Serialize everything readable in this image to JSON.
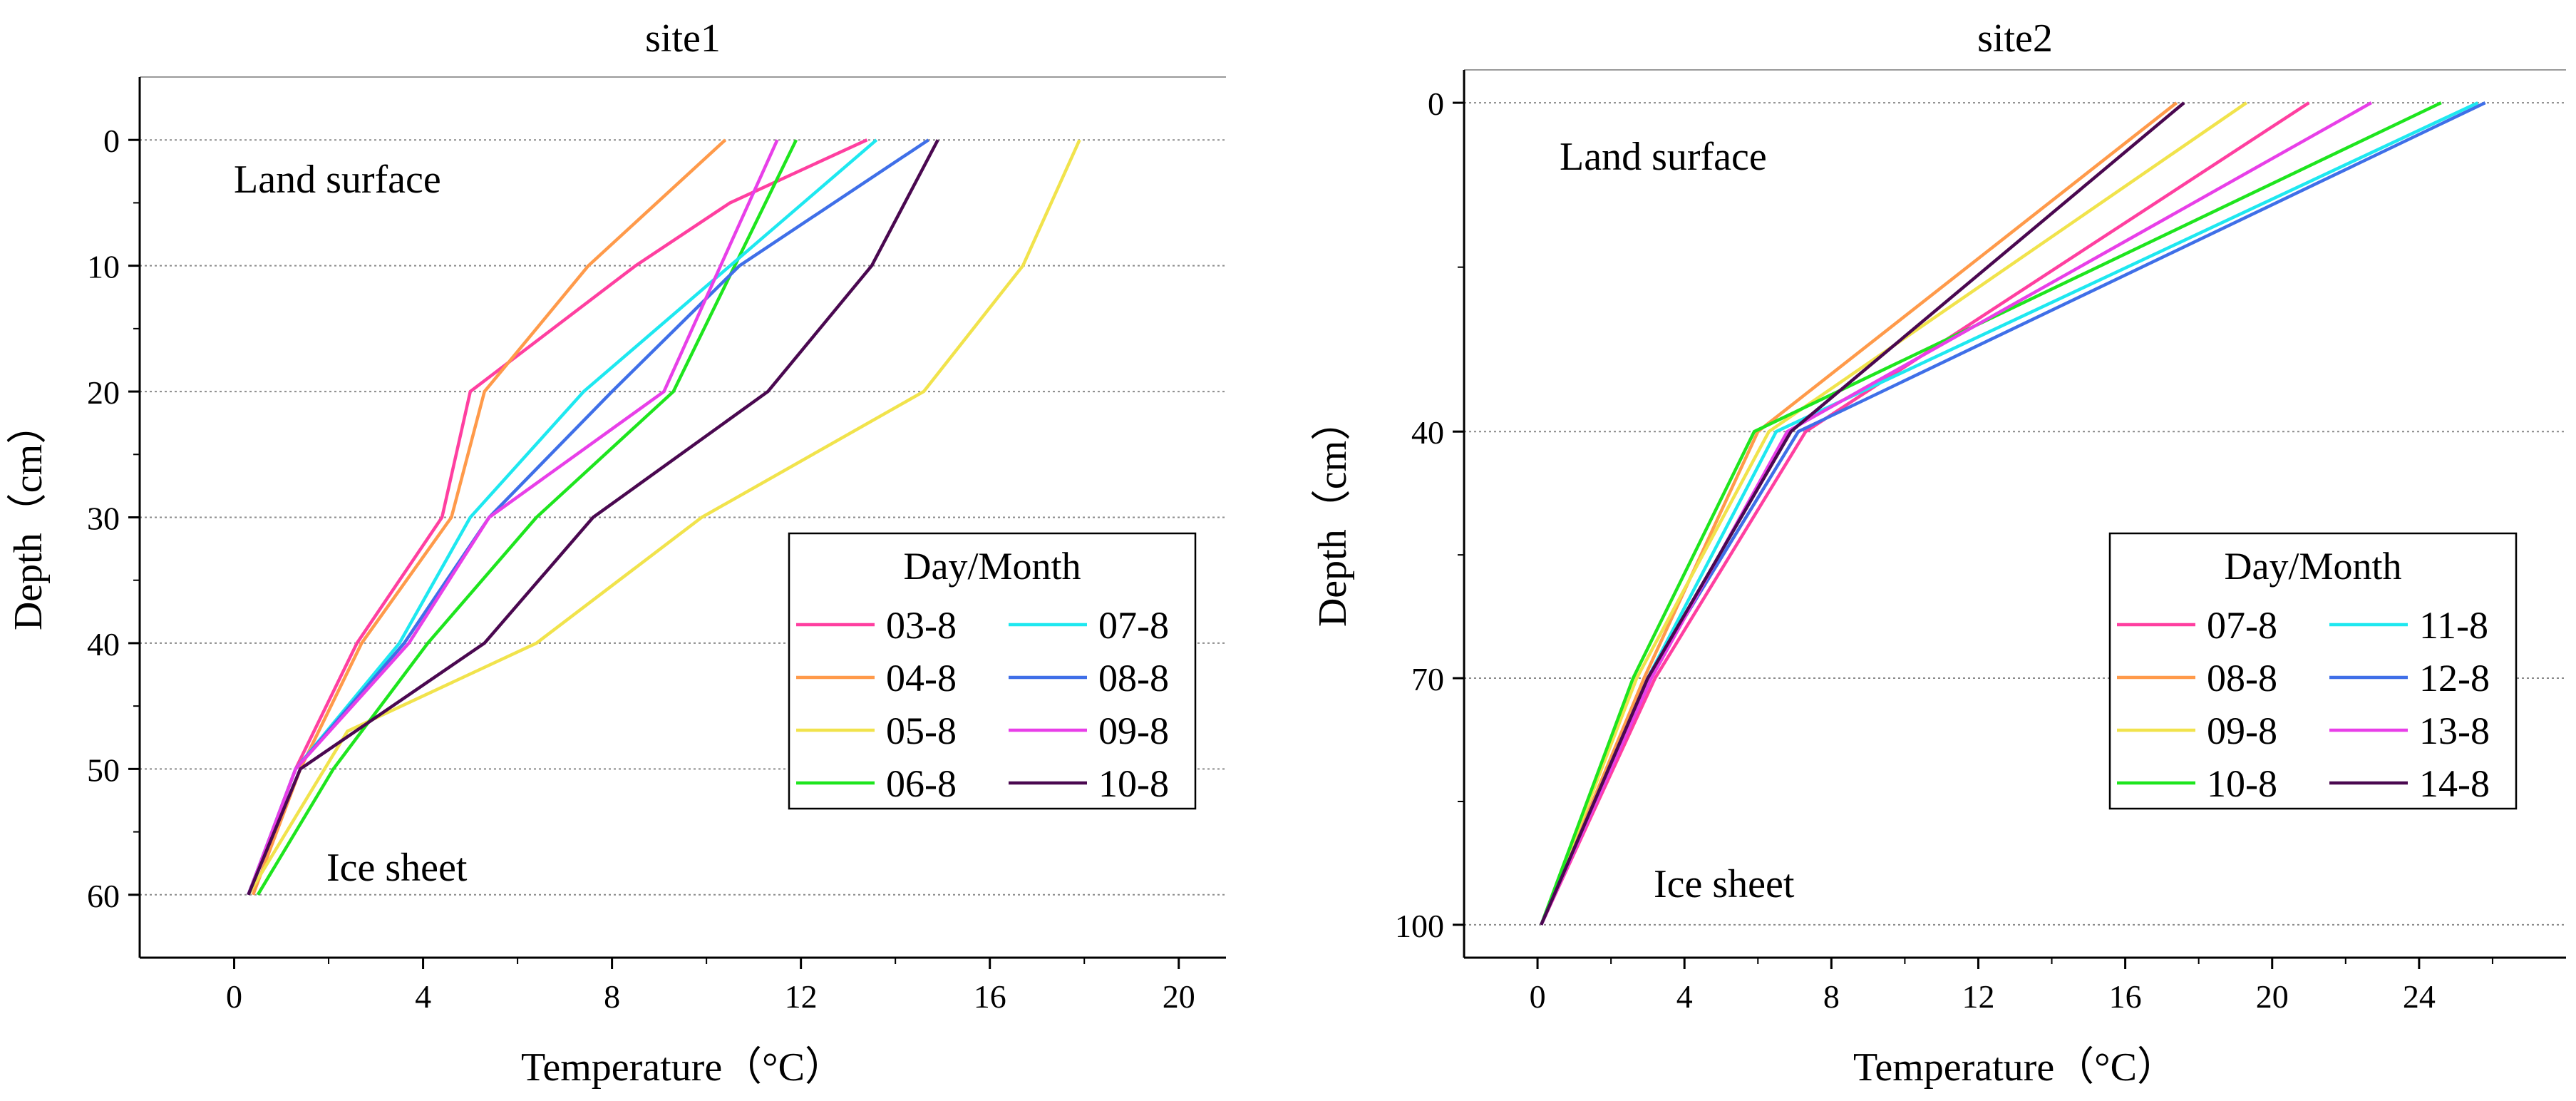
{
  "chart_data": [
    {
      "type": "line",
      "title": "site1",
      "xlabel": "Temperature（°C）",
      "ylabel": "Depth（cm）",
      "xlim": [
        -2,
        21
      ],
      "ylim": [
        65,
        -5
      ],
      "xticks": [
        "0",
        "4",
        "8",
        "12",
        "16",
        "20"
      ],
      "yticks": [
        "0",
        "10",
        "20",
        "30",
        "40",
        "50",
        "60"
      ],
      "annotations": {
        "top": "Land surface",
        "bottom": "Ice sheet"
      },
      "legend": {
        "title": "Day/Month",
        "placement": "bottom-right",
        "columns": 2
      },
      "series": [
        {
          "name": "03-8",
          "color": "#ff3fa0",
          "points": [
            [
              13.4,
              0
            ],
            [
              10.5,
              5
            ],
            [
              8.5,
              10
            ],
            [
              5.0,
              20
            ],
            [
              4.4,
              30
            ],
            [
              2.6,
              40
            ],
            [
              1.3,
              50
            ],
            [
              0.3,
              60
            ]
          ]
        },
        {
          "name": "04-8",
          "color": "#ff9a4a",
          "points": [
            [
              10.4,
              0
            ],
            [
              7.5,
              10
            ],
            [
              5.3,
              20
            ],
            [
              4.6,
              30
            ],
            [
              2.7,
              40
            ],
            [
              1.4,
              50
            ],
            [
              0.4,
              60
            ]
          ]
        },
        {
          "name": "05-8",
          "color": "#f1e34c",
          "points": [
            [
              17.9,
              0
            ],
            [
              16.7,
              10
            ],
            [
              14.6,
              20
            ],
            [
              9.9,
              30
            ],
            [
              6.4,
              40
            ],
            [
              2.4,
              47
            ],
            [
              0.3,
              60
            ]
          ]
        },
        {
          "name": "06-8",
          "color": "#1ee51e",
          "points": [
            [
              11.9,
              0
            ],
            [
              9.3,
              20
            ],
            [
              6.4,
              30
            ],
            [
              4.1,
              40
            ],
            [
              2.1,
              50
            ],
            [
              0.5,
              60
            ]
          ]
        },
        {
          "name": "07-8",
          "color": "#1ee8f0",
          "points": [
            [
              13.6,
              0
            ],
            [
              7.4,
              20
            ],
            [
              5.0,
              30
            ],
            [
              3.5,
              40
            ],
            [
              1.3,
              50
            ],
            [
              0.3,
              60
            ]
          ]
        },
        {
          "name": "08-8",
          "color": "#3f6fe8",
          "points": [
            [
              14.7,
              0
            ],
            [
              10.7,
              10
            ],
            [
              8.0,
              20
            ],
            [
              5.4,
              30
            ],
            [
              3.6,
              40
            ],
            [
              1.3,
              50
            ],
            [
              0.3,
              60
            ]
          ]
        },
        {
          "name": "09-8",
          "color": "#e83fe8",
          "points": [
            [
              11.5,
              0
            ],
            [
              10.3,
              10
            ],
            [
              9.1,
              20
            ],
            [
              5.4,
              30
            ],
            [
              3.7,
              40
            ],
            [
              1.3,
              50
            ],
            [
              0.3,
              60
            ]
          ]
        },
        {
          "name": "10-8",
          "color": "#4a0850",
          "points": [
            [
              14.9,
              0
            ],
            [
              13.5,
              10
            ],
            [
              11.3,
              20
            ],
            [
              7.6,
              30
            ],
            [
              5.3,
              40
            ],
            [
              1.4,
              50
            ],
            [
              0.3,
              60
            ]
          ]
        }
      ]
    },
    {
      "type": "line",
      "title": "site2",
      "xlabel": "Temperature（°C）",
      "ylabel": "Depth（cm）",
      "xlim": [
        -2,
        28
      ],
      "ylim": [
        104,
        -4
      ],
      "xticks": [
        "0",
        "4",
        "8",
        "12",
        "16",
        "20",
        "24"
      ],
      "yticks": [
        "0",
        "40",
        "70",
        "100"
      ],
      "annotations": {
        "top": "Land surface",
        "bottom": "Ice sheet"
      },
      "legend": {
        "title": "Day/Month",
        "placement": "bottom-right",
        "columns": 2
      },
      "series": [
        {
          "name": "07-8",
          "color": "#ff3fa0",
          "points": [
            [
              21.0,
              0
            ],
            [
              7.3,
              40
            ],
            [
              3.2,
              70
            ],
            [
              0.1,
              100
            ]
          ]
        },
        {
          "name": "08-8",
          "color": "#ff9a4a",
          "points": [
            [
              17.4,
              0
            ],
            [
              6.0,
              40
            ],
            [
              2.9,
              70
            ],
            [
              0.1,
              100
            ]
          ]
        },
        {
          "name": "09-8",
          "color": "#f1e34c",
          "points": [
            [
              19.3,
              0
            ],
            [
              6.3,
              40
            ],
            [
              2.7,
              70
            ],
            [
              0.1,
              100
            ]
          ]
        },
        {
          "name": "10-8",
          "color": "#1ee51e",
          "points": [
            [
              24.6,
              0
            ],
            [
              5.9,
              40
            ],
            [
              2.6,
              70
            ],
            [
              0.1,
              100
            ]
          ]
        },
        {
          "name": "11-8",
          "color": "#1ee8f0",
          "points": [
            [
              25.6,
              0
            ],
            [
              6.5,
              40
            ],
            [
              3.0,
              70
            ],
            [
              0.1,
              100
            ]
          ]
        },
        {
          "name": "12-8",
          "color": "#3f6fe8",
          "points": [
            [
              25.8,
              0
            ],
            [
              7.1,
              40
            ],
            [
              3.0,
              70
            ],
            [
              0.1,
              100
            ]
          ]
        },
        {
          "name": "13-8",
          "color": "#e83fe8",
          "points": [
            [
              22.7,
              0
            ],
            [
              6.8,
              40
            ],
            [
              3.1,
              70
            ],
            [
              0.1,
              100
            ]
          ]
        },
        {
          "name": "14-8",
          "color": "#4a0850",
          "points": [
            [
              17.6,
              0
            ],
            [
              6.9,
              40
            ],
            [
              3.0,
              70
            ],
            [
              0.1,
              100
            ]
          ]
        }
      ]
    }
  ]
}
